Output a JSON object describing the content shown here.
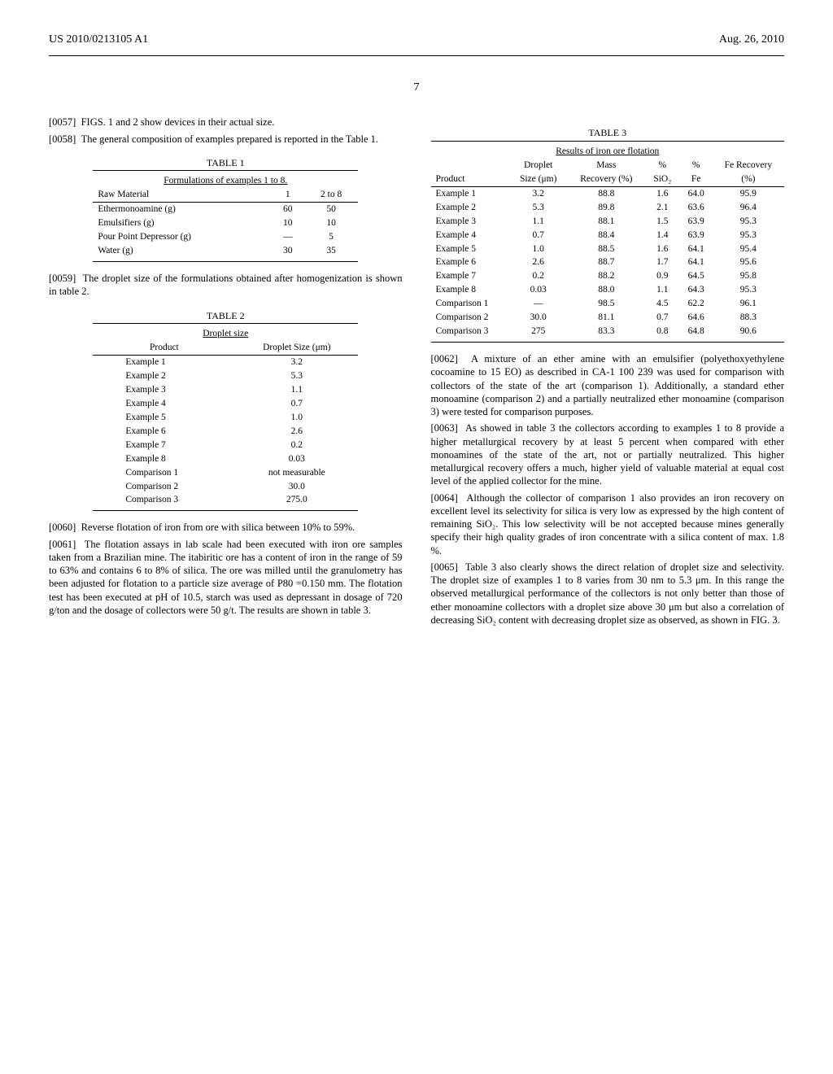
{
  "header": {
    "left": "US 2010/0213105 A1",
    "right": "Aug. 26, 2010"
  },
  "page_number": "7",
  "left_column": {
    "p57": "FIGS. 1 and 2 show devices in their actual size.",
    "p58": "The general composition of examples prepared is reported in the Table 1.",
    "table1": {
      "caption": "TABLE 1",
      "title": "Formulations of examples 1 to 8.",
      "h0": "Raw Material",
      "h1": "1",
      "h2": "2 to 8",
      "rows": [
        {
          "c0": "Ethermonoamine (g)",
          "c1": "60",
          "c2": "50"
        },
        {
          "c0": "Emulsifiers (g)",
          "c1": "10",
          "c2": "10"
        },
        {
          "c0": "Pour Point Depressor (g)",
          "c1": "—",
          "c2": "5"
        },
        {
          "c0": "Water (g)",
          "c1": "30",
          "c2": "35"
        }
      ]
    },
    "p59": "The droplet size of the formulations obtained after homogenization is shown in table 2.",
    "table2": {
      "caption": "TABLE 2",
      "title": "Droplet size",
      "h0": "Product",
      "h1": "Droplet Size (μm)",
      "rows": [
        {
          "c0": "Example 1",
          "c1": "3.2"
        },
        {
          "c0": "Example 2",
          "c1": "5.3"
        },
        {
          "c0": "Example 3",
          "c1": "1.1"
        },
        {
          "c0": "Example 4",
          "c1": "0.7"
        },
        {
          "c0": "Example 5",
          "c1": "1.0"
        },
        {
          "c0": "Example 6",
          "c1": "2.6"
        },
        {
          "c0": "Example 7",
          "c1": "0.2"
        },
        {
          "c0": "Example 8",
          "c1": "0.03"
        },
        {
          "c0": "Comparison 1",
          "c1": "not measurable"
        },
        {
          "c0": "Comparison 2",
          "c1": "30.0"
        },
        {
          "c0": "Comparison 3",
          "c1": "275.0"
        }
      ]
    },
    "p60": "Reverse flotation of iron from ore with silica between 10% to 59%.",
    "p61": "The flotation assays in lab scale had been executed with iron ore samples taken from a Brazilian mine. The itabiritic ore has a content of iron in the range of 59 to 63% and contains 6 to 8% of silica. The ore was milled until the granulometry has been adjusted for flotation to a particle size average of P80 =0.150 mm. The flotation test has been executed at pH of 10.5, starch was used as depressant in dosage of 720 g/ton and the dosage of collectors were 50 g/t. The results are shown in table 3."
  },
  "right_column": {
    "table3": {
      "caption": "TABLE 3",
      "title": "Results of iron ore flotation",
      "h0": "Product",
      "h1a": "Droplet",
      "h1b": "Size (μm)",
      "h2a": "Mass",
      "h2b": "Recovery (%)",
      "h3a": "%",
      "h3b": "SiO₂",
      "h4a": "%",
      "h4b": "Fe",
      "h5a": "Fe Recovery",
      "h5b": "(%)",
      "rows": [
        {
          "c0": "Example 1",
          "c1": "3.2",
          "c2": "88.8",
          "c3": "1.6",
          "c4": "64.0",
          "c5": "95.9"
        },
        {
          "c0": "Example 2",
          "c1": "5.3",
          "c2": "89.8",
          "c3": "2.1",
          "c4": "63.6",
          "c5": "96.4"
        },
        {
          "c0": "Example 3",
          "c1": "1.1",
          "c2": "88.1",
          "c3": "1.5",
          "c4": "63.9",
          "c5": "95.3"
        },
        {
          "c0": "Example 4",
          "c1": "0.7",
          "c2": "88.4",
          "c3": "1.4",
          "c4": "63.9",
          "c5": "95.3"
        },
        {
          "c0": "Example 5",
          "c1": "1.0",
          "c2": "88.5",
          "c3": "1.6",
          "c4": "64.1",
          "c5": "95.4"
        },
        {
          "c0": "Example 6",
          "c1": "2.6",
          "c2": "88.7",
          "c3": "1.7",
          "c4": "64.1",
          "c5": "95.6"
        },
        {
          "c0": "Example 7",
          "c1": "0.2",
          "c2": "88.2",
          "c3": "0.9",
          "c4": "64.5",
          "c5": "95.8"
        },
        {
          "c0": "Example 8",
          "c1": "0.03",
          "c2": "88.0",
          "c3": "1.1",
          "c4": "64.3",
          "c5": "95.3"
        },
        {
          "c0": "Comparison 1",
          "c1": "—",
          "c2": "98.5",
          "c3": "4.5",
          "c4": "62.2",
          "c5": "96.1"
        },
        {
          "c0": "Comparison 2",
          "c1": "30.0",
          "c2": "81.1",
          "c3": "0.7",
          "c4": "64.6",
          "c5": "88.3"
        },
        {
          "c0": "Comparison 3",
          "c1": "275",
          "c2": "83.3",
          "c3": "0.8",
          "c4": "64.8",
          "c5": "90.6"
        }
      ]
    },
    "p62": "A mixture of an ether amine with an emulsifier (polyethoxyethylene cocoamine to 15 EO) as described in CA-1 100 239 was used for comparison with collectors of the state of the art (comparison 1). Additionally, a standard ether monoamine (comparison 2) and a partially neutralized ether monoamine (comparison 3) were tested for comparison purposes.",
    "p63": "As showed in table 3 the collectors according to examples 1 to 8 provide a higher metallurgical recovery by at least 5 percent when compared with ether monoamines of the state of the art, not or partially neutralized. This higher metallurgical recovery offers a much, higher yield of valuable material at equal cost level of the applied collector for the mine.",
    "p64": "Although the collector of comparison 1 also provides an iron recovery on excellent level its selectivity for silica is very low as expressed by the high content of remaining SiO₂. This low selectivity will be not accepted because mines generally specify their high quality grades of iron concentrate with a silica content of max. 1.8 %.",
    "p65": "Table 3 also clearly shows the direct relation of droplet size and selectivity. The droplet size of examples 1 to 8 varies from 30 nm to 5.3 μm. In this range the observed metallurgical performance of the collectors is not only better than those of ether monoamine collectors with a droplet size above 30 μm but also a correlation of decreasing SiO₂ content with decreasing droplet size as observed, as shown in FIG. 3."
  }
}
